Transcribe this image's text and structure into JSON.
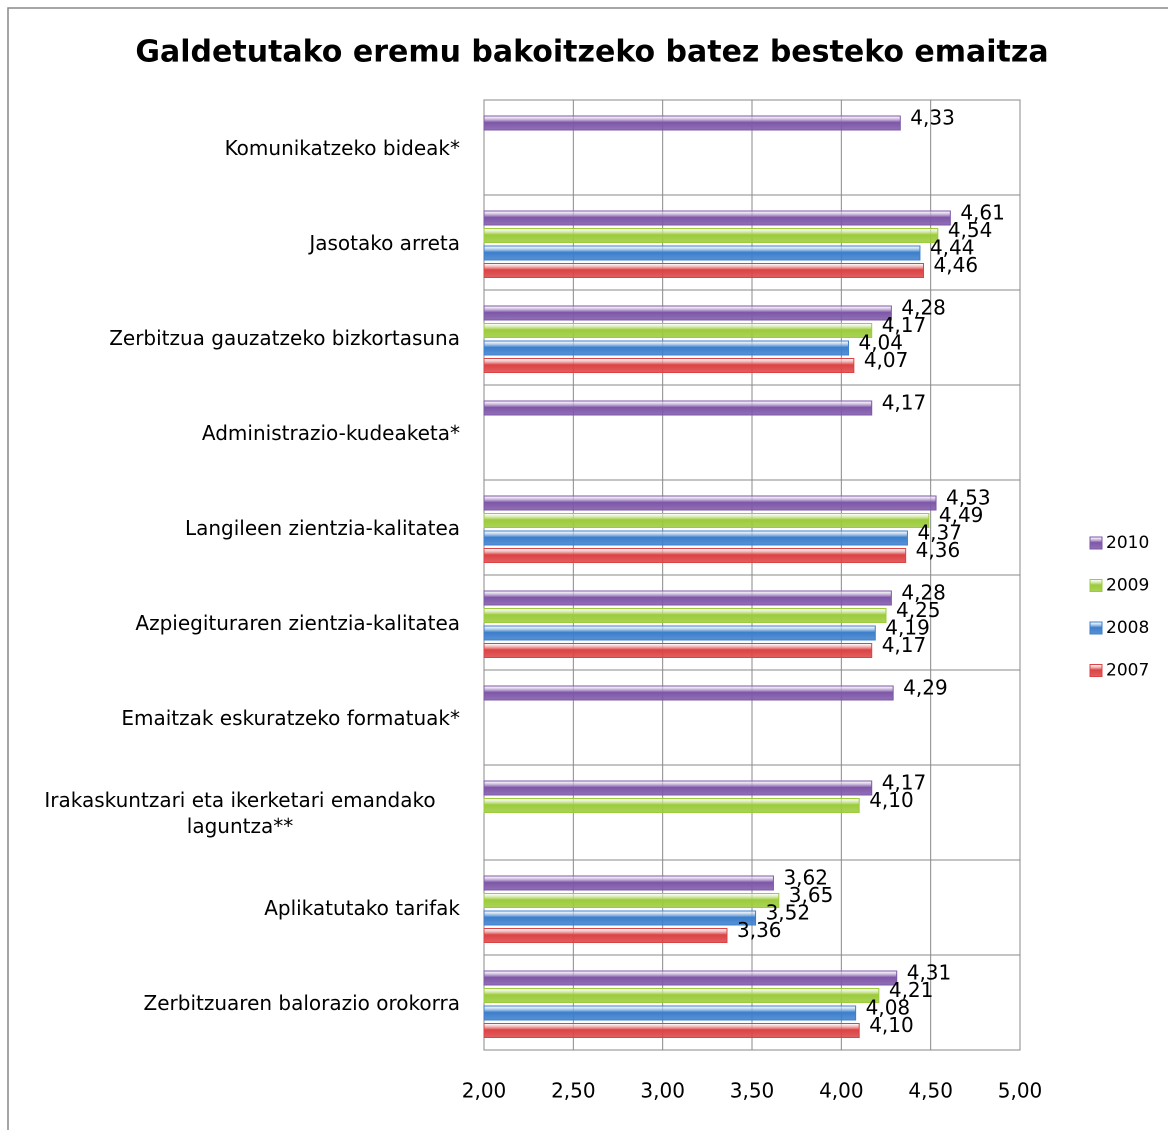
{
  "chart_data": {
    "type": "bar",
    "orientation": "horizontal",
    "title": "Galdetutako eremu bakoitzeko batez besteko emaitza",
    "categories": [
      "Komunikatzeko bideak*",
      "Jasotako arreta",
      "Zerbitzua gauzatzeko bizkortasuna",
      "Administrazio-kudeaketa*",
      "Langileen zientzia-kalitatea",
      "Azpiegituraren zientzia-kalitatea",
      "Emaitzak eskuratzeko formatuak*",
      "Irakaskuntzari eta ikerketari emandako laguntza**",
      "Aplikatutako tarifak",
      "Zerbitzuaren balorazio orokorra"
    ],
    "series": [
      {
        "name": "2010",
        "color": "#7e57a8",
        "values": [
          4.33,
          4.61,
          4.28,
          4.17,
          4.53,
          4.28,
          4.29,
          4.17,
          3.62,
          4.31
        ],
        "value_labels": [
          "4,33",
          "4,61",
          "4,28",
          "4,17",
          "4,53",
          "4,28",
          "4,29",
          "4,17",
          "3,62",
          "4,31"
        ]
      },
      {
        "name": "2009",
        "color": "#9ccb3b",
        "values": [
          null,
          4.54,
          4.17,
          null,
          4.49,
          4.25,
          null,
          4.1,
          3.65,
          4.21
        ],
        "value_labels": [
          null,
          "4,54",
          "4,17",
          null,
          "4,49",
          "4,25",
          null,
          "4,10",
          "3,65",
          "4,21"
        ]
      },
      {
        "name": "2008",
        "color": "#3c7fcc",
        "values": [
          null,
          4.44,
          4.04,
          null,
          4.37,
          4.19,
          null,
          null,
          3.52,
          4.08
        ],
        "value_labels": [
          null,
          "4,44",
          "4,04",
          null,
          "4,37",
          "4,19",
          null,
          null,
          "3,52",
          "4,08"
        ]
      },
      {
        "name": "2007",
        "color": "#dc4344",
        "values": [
          null,
          4.46,
          4.07,
          null,
          4.36,
          4.17,
          null,
          null,
          3.36,
          4.1
        ],
        "value_labels": [
          null,
          "4,46",
          "4,07",
          null,
          "4,36",
          "4,17",
          null,
          null,
          "3,36",
          "4,10"
        ]
      }
    ],
    "xlim": [
      2,
      5
    ],
    "xticks": [
      {
        "value": 2,
        "label": "2,00"
      },
      {
        "value": 2.5,
        "label": "2,50"
      },
      {
        "value": 3,
        "label": "3,00"
      },
      {
        "value": 3.5,
        "label": "3,50"
      },
      {
        "value": 4,
        "label": "4,00"
      },
      {
        "value": 4.5,
        "label": "4,50"
      },
      {
        "value": 5,
        "label": "5,00"
      }
    ],
    "grid": true,
    "legend": "right"
  }
}
